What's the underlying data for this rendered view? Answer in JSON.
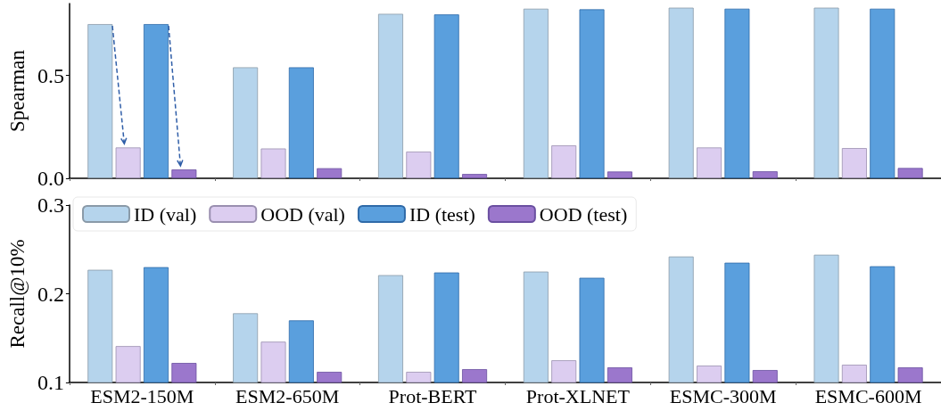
{
  "chart_data": [
    {
      "type": "bar",
      "ylabel": "Spearman",
      "categories": [
        null,
        null,
        null,
        null,
        null,
        null
      ],
      "series": [
        {
          "color": "#b5d4ec",
          "values": [
            0.75,
            0.54,
            0.8,
            0.825,
            0.83,
            0.83
          ]
        },
        {
          "color": "#dccdf0",
          "values": [
            0.15,
            0.145,
            0.13,
            0.16,
            0.15,
            0.147
          ]
        },
        {
          "color": "#5a9fdd",
          "values": [
            0.75,
            0.54,
            0.797,
            0.822,
            0.825,
            0.825
          ]
        },
        {
          "color": "#9b77cc",
          "values": [
            0.043,
            0.049,
            0.021,
            0.033,
            0.034,
            0.05
          ]
        }
      ],
      "ylim": [
        0,
        0.85
      ],
      "yticks": [
        {
          "value": 0,
          "label": "0.0"
        },
        0.5
      ],
      "tick_labels": "y",
      "grid": false,
      "legend": false
    },
    {
      "type": "bar",
      "ylabel": "Recall@10%",
      "categories": [
        "ESM2-150M",
        "ESM2-650M",
        "Prot-BERT",
        "Prot-XLNET",
        "ESMC-300M",
        "ESMC-600M"
      ],
      "series": [
        {
          "name": "ID (val)",
          "color": "#b5d4ec",
          "values": [
            0.227,
            0.178,
            0.221,
            0.225,
            0.242,
            0.244
          ]
        },
        {
          "name": "OOD (val)",
          "color": "#dccdf0",
          "values": [
            0.141,
            0.146,
            0.112,
            0.125,
            0.119,
            0.12
          ]
        },
        {
          "name": "ID (test)",
          "color": "#5a9fdd",
          "values": [
            0.23,
            0.17,
            0.224,
            0.218,
            0.235,
            0.231
          ]
        },
        {
          "name": "OOD (test)",
          "color": "#9b77cc",
          "values": [
            0.122,
            0.112,
            0.115,
            0.117,
            0.114,
            0.117
          ]
        }
      ],
      "ylim": [
        0.1,
        0.3
      ],
      "yticks": [
        0.1,
        0.2,
        0.3
      ],
      "grid": false,
      "legend": "top left"
    }
  ]
}
